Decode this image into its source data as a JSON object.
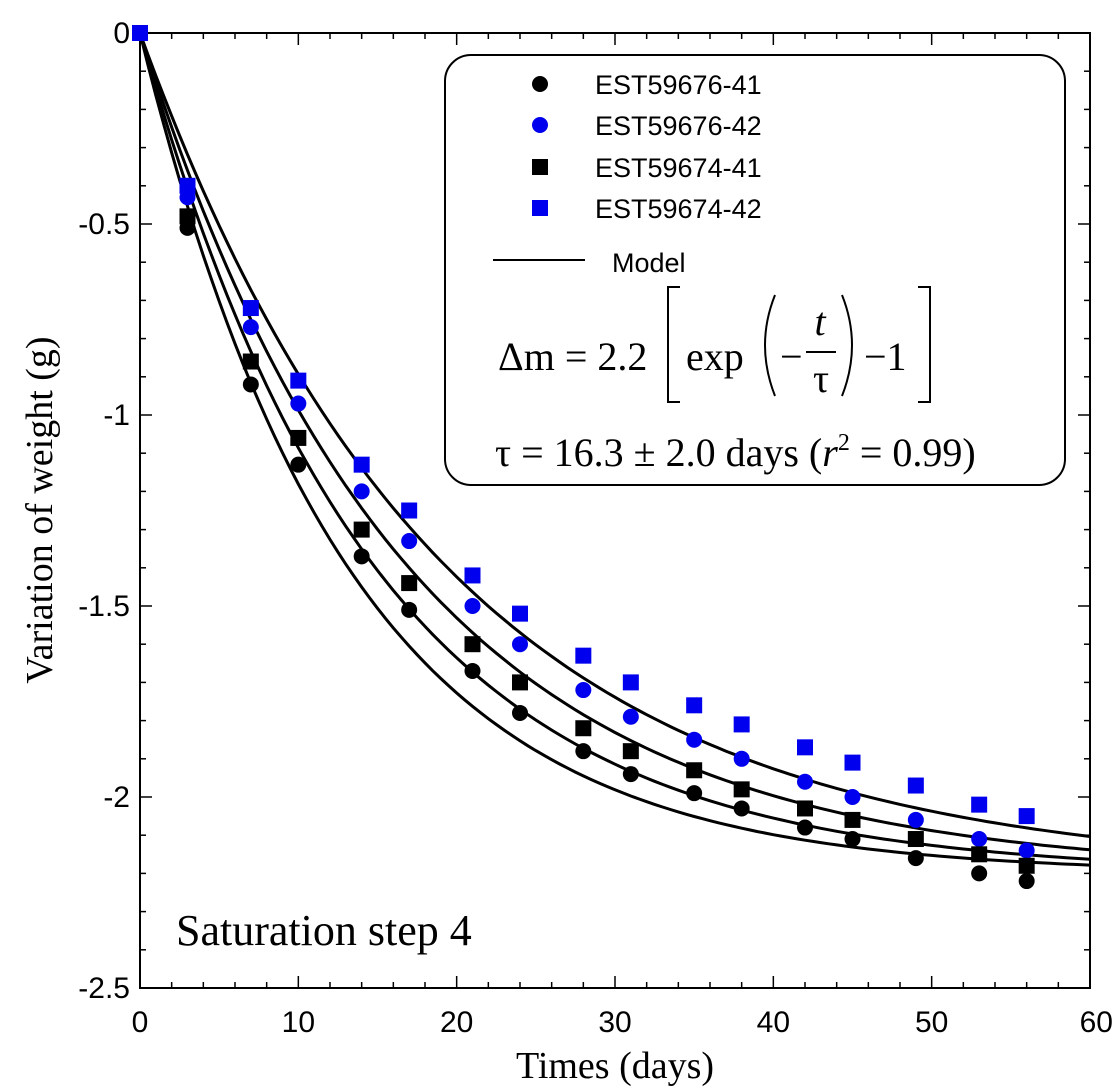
{
  "chart_data": {
    "type": "scatter",
    "xlabel": "Times (days)",
    "ylabel": "Variation of weight (g)",
    "xlim": [
      0,
      60
    ],
    "ylim": [
      -2.5,
      0
    ],
    "xticks": [
      0,
      10,
      20,
      30,
      40,
      50,
      60
    ],
    "xtick_labels": [
      "0",
      "10",
      "20",
      "30",
      "40",
      "50",
      "60"
    ],
    "yticks": [
      0,
      -0.5,
      -1,
      -1.5,
      -2,
      -2.5
    ],
    "ytick_labels": [
      "0",
      "-0.5",
      "-1",
      "-1.5",
      "-2",
      "-2.5"
    ],
    "grid": false,
    "legend_position": "top-right",
    "annotation": "Saturation step 4",
    "series": [
      {
        "name": "EST59676-41",
        "marker": "circle",
        "color": "#000000",
        "points": [
          [
            0,
            0
          ],
          [
            3,
            -0.51
          ],
          [
            7,
            -0.92
          ],
          [
            10,
            -1.13
          ],
          [
            14,
            -1.37
          ],
          [
            17,
            -1.51
          ],
          [
            21,
            -1.67
          ],
          [
            24,
            -1.78
          ],
          [
            28,
            -1.88
          ],
          [
            31,
            -1.94
          ],
          [
            35,
            -1.99
          ],
          [
            38,
            -2.03
          ],
          [
            42,
            -2.08
          ],
          [
            45,
            -2.11
          ],
          [
            49,
            -2.16
          ],
          [
            53,
            -2.2
          ],
          [
            56,
            -2.22
          ]
        ]
      },
      {
        "name": "EST59676-42",
        "marker": "circle",
        "color": "#0000ee",
        "points": [
          [
            0,
            0
          ],
          [
            3,
            -0.43
          ],
          [
            7,
            -0.77
          ],
          [
            10,
            -0.97
          ],
          [
            14,
            -1.2
          ],
          [
            17,
            -1.33
          ],
          [
            21,
            -1.5
          ],
          [
            24,
            -1.6
          ],
          [
            28,
            -1.72
          ],
          [
            31,
            -1.79
          ],
          [
            35,
            -1.85
          ],
          [
            38,
            -1.9
          ],
          [
            42,
            -1.96
          ],
          [
            45,
            -2.0
          ],
          [
            49,
            -2.06
          ],
          [
            53,
            -2.11
          ],
          [
            56,
            -2.14
          ]
        ]
      },
      {
        "name": "EST59674-41",
        "marker": "square",
        "color": "#000000",
        "points": [
          [
            0,
            0
          ],
          [
            3,
            -0.48
          ],
          [
            7,
            -0.86
          ],
          [
            10,
            -1.06
          ],
          [
            14,
            -1.3
          ],
          [
            17,
            -1.44
          ],
          [
            21,
            -1.6
          ],
          [
            24,
            -1.7
          ],
          [
            28,
            -1.82
          ],
          [
            31,
            -1.88
          ],
          [
            35,
            -1.93
          ],
          [
            38,
            -1.98
          ],
          [
            42,
            -2.03
          ],
          [
            45,
            -2.06
          ],
          [
            49,
            -2.11
          ],
          [
            53,
            -2.15
          ],
          [
            56,
            -2.18
          ]
        ]
      },
      {
        "name": "EST59674-42",
        "marker": "square",
        "color": "#0000ee",
        "points": [
          [
            0,
            0
          ],
          [
            3,
            -0.4
          ],
          [
            7,
            -0.72
          ],
          [
            10,
            -0.91
          ],
          [
            14,
            -1.13
          ],
          [
            17,
            -1.25
          ],
          [
            21,
            -1.42
          ],
          [
            24,
            -1.52
          ],
          [
            28,
            -1.63
          ],
          [
            31,
            -1.7
          ],
          [
            35,
            -1.76
          ],
          [
            38,
            -1.81
          ],
          [
            42,
            -1.87
          ],
          [
            45,
            -1.91
          ],
          [
            49,
            -1.97
          ],
          [
            53,
            -2.02
          ],
          [
            56,
            -2.05
          ]
        ]
      }
    ],
    "model": {
      "name": "Model",
      "amplitude": 2.2,
      "curves_tau": [
        13.0,
        14.7,
        16.8,
        19.2
      ],
      "color": "#000000"
    },
    "equation_lines": [
      {
        "lhs": "Δm = 2.2",
        "func": "exp",
        "minus_sign": "−",
        "frac_num": "t",
        "frac_den": "τ",
        "tail": "−1"
      },
      {
        "text_tau": "τ = 16.3 ± 2.0  days  (",
        "r": "r",
        "sup": "2",
        "tail": " = 0.99)"
      }
    ]
  }
}
